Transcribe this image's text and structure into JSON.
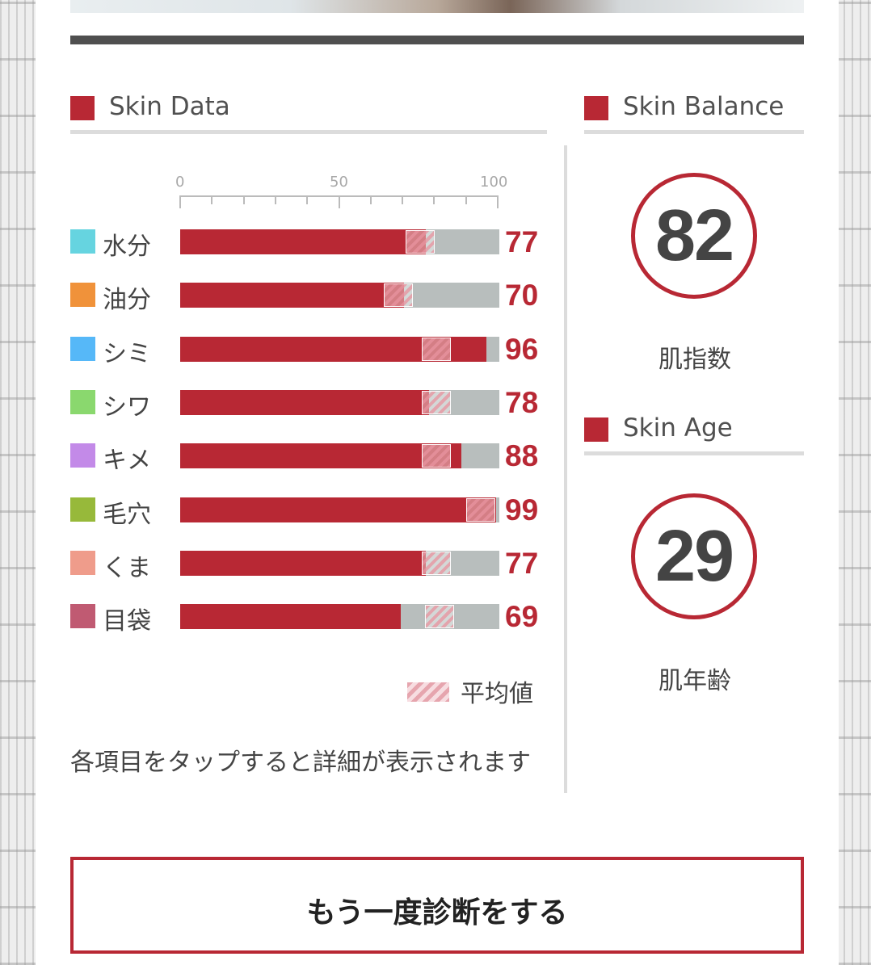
{
  "skin_data": {
    "title": "Skin Data",
    "axis_labels": [
      "0",
      "50",
      "100"
    ],
    "items": [
      {
        "label": "水分",
        "value": "77",
        "swatch_color": "#66d4e0",
        "score": 77,
        "avg": 75
      },
      {
        "label": "油分",
        "value": "70",
        "swatch_color": "#f0923a",
        "score": 70,
        "avg": 68
      },
      {
        "label": "シミ",
        "value": "96",
        "swatch_color": "#56b8f8",
        "score": 96,
        "avg": 80
      },
      {
        "label": "シワ",
        "value": "78",
        "swatch_color": "#8ad86e",
        "score": 78,
        "avg": 80
      },
      {
        "label": "キメ",
        "value": "88",
        "swatch_color": "#c38ae8",
        "score": 88,
        "avg": 80
      },
      {
        "label": "毛穴",
        "value": "99",
        "swatch_color": "#97b93a",
        "score": 99,
        "avg": 94
      },
      {
        "label": "くま",
        "value": "77",
        "swatch_color": "#ef9c8b",
        "score": 77,
        "avg": 80
      },
      {
        "label": "目袋",
        "value": "69",
        "swatch_color": "#c05a72",
        "score": 69,
        "avg": 81
      }
    ],
    "legend_label": "平均値",
    "note": "各項目をタップすると詳細が表示されます"
  },
  "skin_balance": {
    "title": "Skin Balance",
    "score": "82",
    "caption": "肌指数"
  },
  "skin_age": {
    "title": "Skin Age",
    "age": "29",
    "caption": "肌年齢"
  },
  "cta_label": "もう一度診断をする",
  "colors": {
    "accent": "#b82834",
    "track": "#b8bebd",
    "text": "#444444"
  }
}
